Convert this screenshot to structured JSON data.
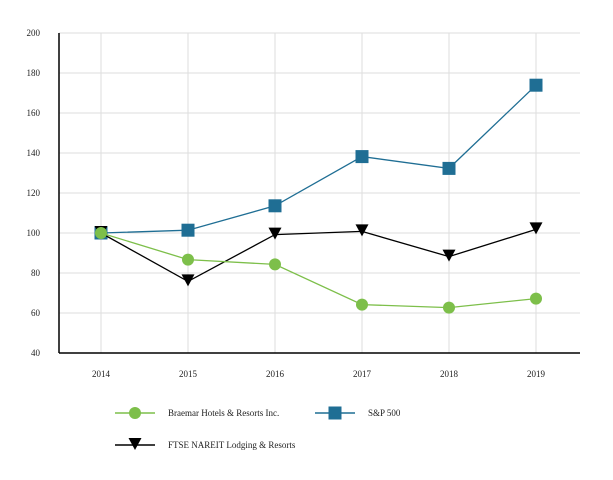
{
  "chart_data": {
    "type": "line",
    "title": "",
    "xlabel": "",
    "ylabel": "",
    "categories": [
      "2014",
      "2015",
      "2016",
      "2017",
      "2018",
      "2019"
    ],
    "ylim": [
      40,
      200
    ],
    "yticks": [
      "40",
      "60",
      "80",
      "100",
      "120",
      "140",
      "160",
      "180",
      "200"
    ],
    "grid": true,
    "legend_position": "bottom",
    "series": [
      {
        "name": "Braemar Hotels & Resorts Inc.",
        "color": "#7dbf4a",
        "marker": "circle",
        "values": [
          100,
          86.7,
          84.3,
          64.2,
          62.7,
          67.2
        ]
      },
      {
        "name": "S&P 500",
        "color": "#1f6e94",
        "marker": "square",
        "values": [
          100,
          101.4,
          113.6,
          138.2,
          132.3,
          173.9
        ]
      },
      {
        "name": "FTSE NAREIT Lodging & Resorts",
        "color": "#000000",
        "marker": "triangle-down",
        "values": [
          100,
          75.8,
          99.2,
          100.8,
          88.2,
          101.8
        ]
      }
    ]
  }
}
